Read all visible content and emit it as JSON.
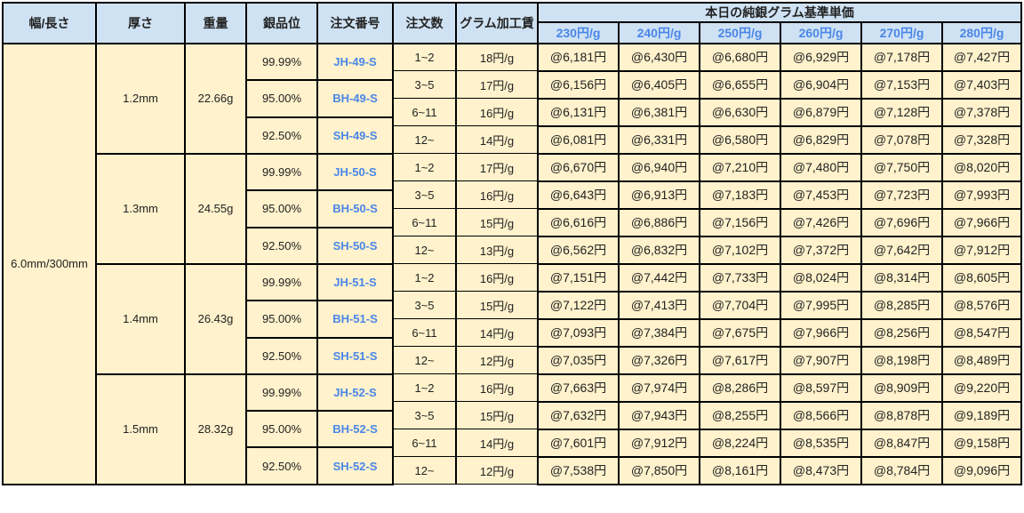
{
  "headers": {
    "width_length": "幅/長さ",
    "thickness": "厚さ",
    "weight": "重量",
    "purity": "銀品位",
    "order_code": "注文番号",
    "order_qty": "注文数",
    "gram_fee": "グラム加工賃",
    "base_price_group": "本日の純銀グラム基準単価",
    "base_prices": [
      "230円/g",
      "240円/g",
      "250円/g",
      "260円/g",
      "270円/g",
      "280円/g"
    ]
  },
  "size": "6.0mm/300mm",
  "quantities": [
    "1~2",
    "3~5",
    "6~11",
    "12~"
  ],
  "purities": [
    "99.99%",
    "95.00%",
    "92.50%"
  ],
  "groups": [
    {
      "thickness": "1.2mm",
      "weight": "22.66g",
      "codes": [
        "JH-49-S",
        "BH-49-S",
        "SH-49-S"
      ],
      "fees": [
        "18円/g",
        "17円/g",
        "16円/g",
        "14円/g"
      ],
      "prices": [
        [
          "@6,181円",
          "@6,430円",
          "@6,680円",
          "@6,929円",
          "@7,178円",
          "@7,427円"
        ],
        [
          "@6,156円",
          "@6,405円",
          "@6,655円",
          "@6,904円",
          "@7,153円",
          "@7,403円"
        ],
        [
          "@6,131円",
          "@6,381円",
          "@6,630円",
          "@6,879円",
          "@7,128円",
          "@7,378円"
        ],
        [
          "@6,081円",
          "@6,331円",
          "@6,580円",
          "@6,829円",
          "@7,078円",
          "@7,328円"
        ]
      ]
    },
    {
      "thickness": "1.3mm",
      "weight": "24.55g",
      "codes": [
        "JH-50-S",
        "BH-50-S",
        "SH-50-S"
      ],
      "fees": [
        "17円/g",
        "16円/g",
        "15円/g",
        "13円/g"
      ],
      "prices": [
        [
          "@6,670円",
          "@6,940円",
          "@7,210円",
          "@7,480円",
          "@7,750円",
          "@8,020円"
        ],
        [
          "@6,643円",
          "@6,913円",
          "@7,183円",
          "@7,453円",
          "@7,723円",
          "@7,993円"
        ],
        [
          "@6,616円",
          "@6,886円",
          "@7,156円",
          "@7,426円",
          "@7,696円",
          "@7,966円"
        ],
        [
          "@6,562円",
          "@6,832円",
          "@7,102円",
          "@7,372円",
          "@7,642円",
          "@7,912円"
        ]
      ]
    },
    {
      "thickness": "1.4mm",
      "weight": "26.43g",
      "codes": [
        "JH-51-S",
        "BH-51-S",
        "SH-51-S"
      ],
      "fees": [
        "16円/g",
        "15円/g",
        "14円/g",
        "12円/g"
      ],
      "prices": [
        [
          "@7,151円",
          "@7,442円",
          "@7,733円",
          "@8,024円",
          "@8,314円",
          "@8,605円"
        ],
        [
          "@7,122円",
          "@7,413円",
          "@7,704円",
          "@7,995円",
          "@8,285円",
          "@8,576円"
        ],
        [
          "@7,093円",
          "@7,384円",
          "@7,675円",
          "@7,966円",
          "@8,256円",
          "@8,547円"
        ],
        [
          "@7,035円",
          "@7,326円",
          "@7,617円",
          "@7,907円",
          "@8,198円",
          "@8,489円"
        ]
      ]
    },
    {
      "thickness": "1.5mm",
      "weight": "28.32g",
      "codes": [
        "JH-52-S",
        "BH-52-S",
        "SH-52-S"
      ],
      "fees": [
        "16円/g",
        "15円/g",
        "14円/g",
        "12円/g"
      ],
      "prices": [
        [
          "@7,663円",
          "@7,974円",
          "@8,286円",
          "@8,597円",
          "@8,909円",
          "@9,220円"
        ],
        [
          "@7,632円",
          "@7,943円",
          "@8,255円",
          "@8,566円",
          "@8,878円",
          "@9,189円"
        ],
        [
          "@7,601円",
          "@7,912円",
          "@8,224円",
          "@8,535円",
          "@8,847円",
          "@9,158円"
        ],
        [
          "@7,538円",
          "@7,850円",
          "@8,161円",
          "@8,473円",
          "@8,784円",
          "@9,096円"
        ]
      ]
    }
  ],
  "colors": {
    "header_bg": "#cfe2f3",
    "body_bg": "#fff2cc",
    "accent_text": "#4a86e8"
  }
}
